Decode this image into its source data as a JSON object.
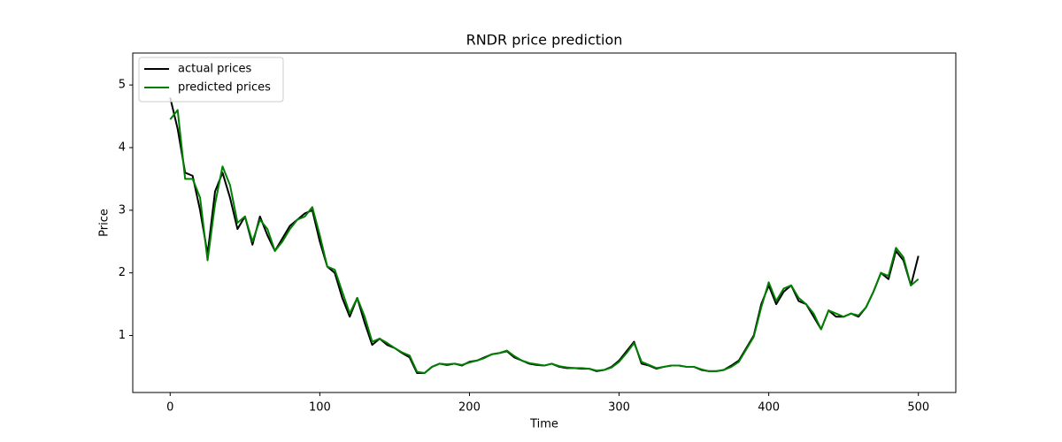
{
  "chart_data": {
    "type": "line",
    "title": "RNDR price prediction",
    "x_label": "Time",
    "y_label": "Price",
    "x": [
      0,
      5,
      10,
      15,
      20,
      25,
      30,
      35,
      40,
      45,
      50,
      55,
      60,
      65,
      70,
      75,
      80,
      85,
      90,
      95,
      100,
      105,
      110,
      115,
      120,
      125,
      130,
      135,
      140,
      145,
      150,
      155,
      160,
      165,
      170,
      175,
      180,
      185,
      190,
      195,
      200,
      205,
      210,
      215,
      220,
      225,
      230,
      235,
      240,
      245,
      250,
      255,
      260,
      265,
      270,
      275,
      280,
      285,
      290,
      295,
      300,
      305,
      310,
      315,
      320,
      325,
      330,
      335,
      340,
      345,
      350,
      355,
      360,
      365,
      370,
      375,
      380,
      385,
      390,
      395,
      400,
      405,
      410,
      415,
      420,
      425,
      430,
      435,
      440,
      445,
      450,
      455,
      460,
      465,
      470,
      475,
      480,
      485,
      490,
      495,
      500
    ],
    "series": [
      {
        "name": "actual prices",
        "color": "#000000",
        "values": [
          4.8,
          4.3,
          3.6,
          3.55,
          3.0,
          2.3,
          3.3,
          3.6,
          3.2,
          2.7,
          2.9,
          2.45,
          2.9,
          2.6,
          2.35,
          2.55,
          2.75,
          2.85,
          2.95,
          3.0,
          2.5,
          2.1,
          2.0,
          1.6,
          1.3,
          1.6,
          1.2,
          0.85,
          0.95,
          0.85,
          0.8,
          0.72,
          0.65,
          0.4,
          0.4,
          0.5,
          0.55,
          0.53,
          0.55,
          0.52,
          0.58,
          0.6,
          0.65,
          0.7,
          0.72,
          0.75,
          0.65,
          0.6,
          0.55,
          0.53,
          0.52,
          0.55,
          0.5,
          0.48,
          0.48,
          0.47,
          0.47,
          0.43,
          0.45,
          0.5,
          0.6,
          0.75,
          0.9,
          0.55,
          0.52,
          0.47,
          0.5,
          0.52,
          0.52,
          0.5,
          0.5,
          0.45,
          0.43,
          0.43,
          0.45,
          0.52,
          0.6,
          0.8,
          1.0,
          1.5,
          1.8,
          1.5,
          1.7,
          1.8,
          1.55,
          1.5,
          1.3,
          1.1,
          1.4,
          1.3,
          1.3,
          1.35,
          1.3,
          1.45,
          1.7,
          2.0,
          1.9,
          2.35,
          2.2,
          1.8,
          2.27
        ]
      },
      {
        "name": "predicted prices",
        "color": "#008000",
        "values": [
          4.45,
          4.6,
          3.5,
          3.5,
          3.2,
          2.2,
          3.1,
          3.7,
          3.4,
          2.8,
          2.9,
          2.5,
          2.85,
          2.7,
          2.35,
          2.5,
          2.7,
          2.85,
          2.9,
          3.05,
          2.6,
          2.1,
          2.05,
          1.7,
          1.35,
          1.6,
          1.3,
          0.9,
          0.95,
          0.88,
          0.8,
          0.73,
          0.68,
          0.42,
          0.4,
          0.5,
          0.55,
          0.54,
          0.55,
          0.53,
          0.57,
          0.6,
          0.64,
          0.7,
          0.72,
          0.76,
          0.67,
          0.6,
          0.56,
          0.54,
          0.52,
          0.55,
          0.51,
          0.49,
          0.48,
          0.48,
          0.47,
          0.44,
          0.45,
          0.49,
          0.58,
          0.72,
          0.88,
          0.58,
          0.53,
          0.48,
          0.5,
          0.52,
          0.52,
          0.5,
          0.5,
          0.46,
          0.43,
          0.43,
          0.45,
          0.5,
          0.58,
          0.78,
          0.98,
          1.45,
          1.85,
          1.55,
          1.75,
          1.8,
          1.6,
          1.5,
          1.35,
          1.1,
          1.4,
          1.35,
          1.3,
          1.35,
          1.32,
          1.45,
          1.7,
          2.0,
          1.95,
          2.4,
          2.25,
          1.8,
          1.9
        ]
      }
    ],
    "xlim": [
      -25,
      525
    ],
    "ylim": [
      0.09,
      5.51
    ],
    "xticks": [
      0,
      100,
      200,
      300,
      400,
      500
    ],
    "yticks": [
      1,
      2,
      3,
      4,
      5
    ],
    "legend": "upper left"
  }
}
